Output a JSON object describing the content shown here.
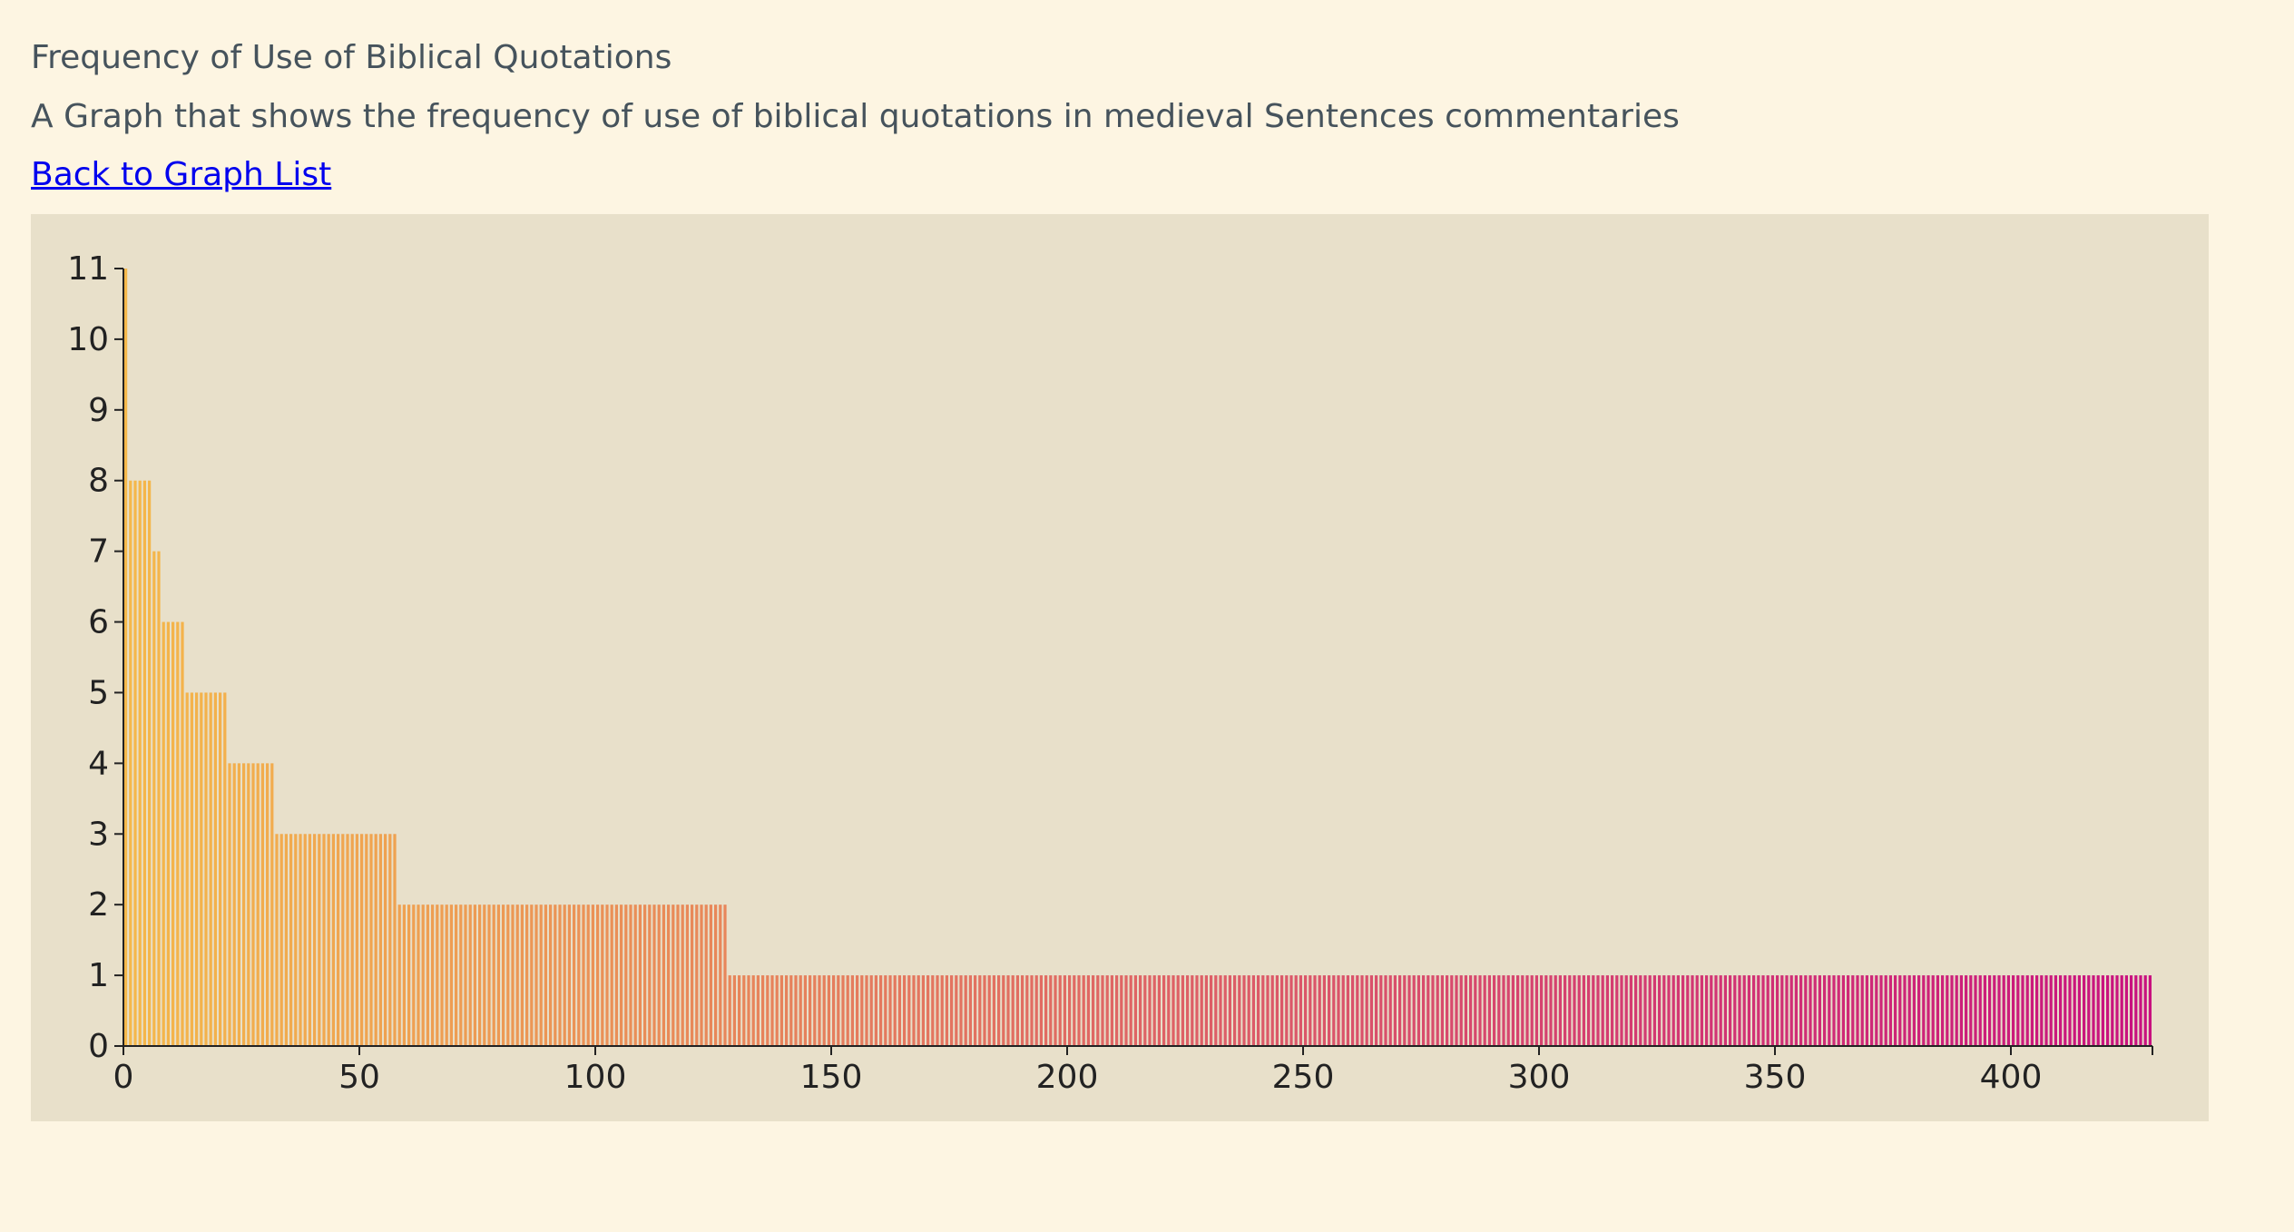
{
  "page": {
    "title": "Frequency of Use of Biblical Quotations",
    "subtitle": "A Graph that shows the frequency of use of biblical quotations in medieval Sentences commentaries",
    "back_link": "Back to Graph List"
  },
  "chart_data": {
    "type": "bar",
    "title": "",
    "xlabel": "",
    "ylabel": "",
    "x_range": [
      0,
      430
    ],
    "ylim": [
      0,
      11
    ],
    "x_ticks": [
      0,
      50,
      100,
      150,
      200,
      250,
      300,
      350,
      400
    ],
    "y_ticks": [
      0,
      1,
      2,
      3,
      4,
      5,
      6,
      7,
      8,
      9,
      10,
      11
    ],
    "grid": false,
    "legend": "none",
    "color_gradient": [
      "#f5b84a",
      "#c8107f"
    ],
    "bar_count": 430,
    "values_run_length": [
      {
        "value": 11,
        "count": 1
      },
      {
        "value": 8,
        "count": 5
      },
      {
        "value": 7,
        "count": 2
      },
      {
        "value": 6,
        "count": 5
      },
      {
        "value": 5,
        "count": 9
      },
      {
        "value": 4,
        "count": 10
      },
      {
        "value": 3,
        "count": 26
      },
      {
        "value": 2,
        "count": 70
      },
      {
        "value": 1,
        "count": 302
      }
    ]
  }
}
